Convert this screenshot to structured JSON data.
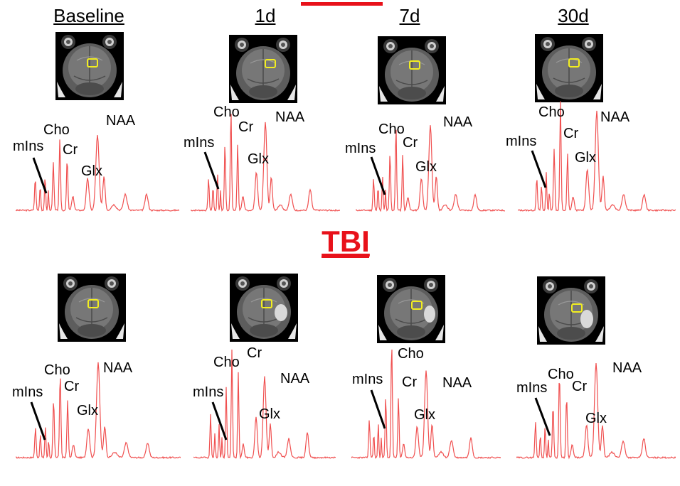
{
  "columns": [
    {
      "title": "Baseline"
    },
    {
      "title": "1d"
    },
    {
      "title": "7d"
    },
    {
      "title": "30d"
    }
  ],
  "group_label": "TBI",
  "colors": {
    "spectrum": "#f05050",
    "roi_box": "#f2ee20",
    "accent": "#e8111a",
    "annotation_line": "#000000",
    "lesion": "#d9d9d9"
  },
  "rows": [
    {
      "row": "control",
      "panels": [
        {
          "labels": {
            "mins": "mIns",
            "cho": "Cho",
            "cr": "Cr",
            "glx": "Glx",
            "naa": "NAA"
          }
        },
        {
          "labels": {
            "mins": "mIns",
            "cho": "Cho",
            "cr": "Cr",
            "glx": "Glx",
            "naa": "NAA"
          }
        },
        {
          "labels": {
            "mins": "mIns",
            "cho": "Cho",
            "cr": "Cr",
            "glx": "Glx",
            "naa": "NAA"
          }
        },
        {
          "labels": {
            "mins": "mIns",
            "cho": "Cho",
            "cr": "Cr",
            "glx": "Glx",
            "naa": "NAA"
          }
        }
      ]
    },
    {
      "row": "tbi",
      "panels": [
        {
          "labels": {
            "mins": "mIns",
            "cho": "Cho",
            "cr": "Cr",
            "glx": "Glx",
            "naa": "NAA"
          }
        },
        {
          "labels": {
            "mins": "mIns",
            "cho": "Cho",
            "cr": "Cr",
            "glx": "Glx",
            "naa": "NAA"
          }
        },
        {
          "labels": {
            "mins": "mIns",
            "cho": "Cho",
            "cr": "Cr",
            "glx": "Glx",
            "naa": "NAA"
          }
        },
        {
          "labels": {
            "mins": "mIns",
            "cho": "Cho",
            "cr": "Cr",
            "glx": "Glx",
            "naa": "NAA"
          }
        }
      ]
    }
  ]
}
